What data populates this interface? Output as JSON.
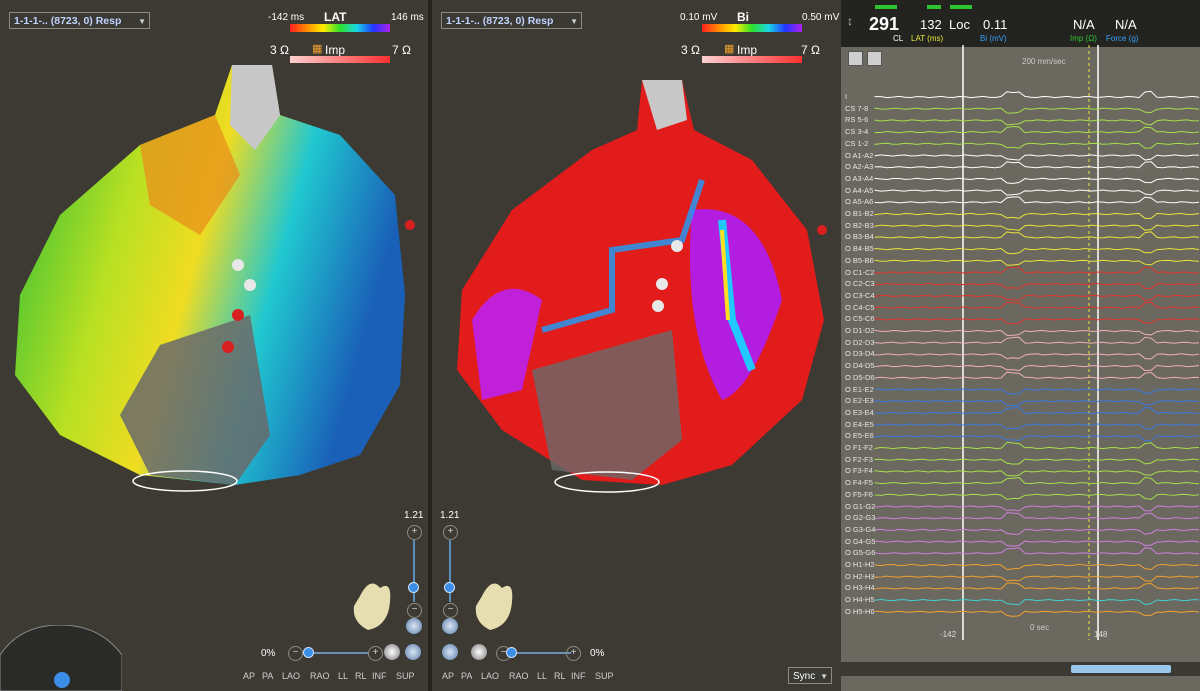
{
  "left_map": {
    "selector": "1-1-1-.. (8723, 0) Resp",
    "legend_title": "LAT",
    "legend_min": "-142 ms",
    "legend_max": "146 ms",
    "imp_label": "Imp",
    "imp_min": "3 Ω",
    "imp_max": "7 Ω",
    "zoom": "1.21",
    "tilt": "0%",
    "views": [
      "AP",
      "PA",
      "LAO",
      "RAO",
      "LL",
      "RL",
      "INF",
      "SUP"
    ]
  },
  "right_map": {
    "selector": "1-1-1-.. (8723, 0) Resp",
    "legend_title": "Bi",
    "legend_min": "0.10 mV",
    "legend_max": "0.50 mV",
    "imp_label": "Imp",
    "imp_min": "3 Ω",
    "imp_max": "7 Ω",
    "zoom": "1.21",
    "tilt": "0%",
    "views": [
      "AP",
      "PA",
      "LAO",
      "RAO",
      "LL",
      "RL",
      "INF",
      "SUP"
    ],
    "sync_label": "Sync"
  },
  "ecg": {
    "cl_value": "291",
    "cl_label": "CL",
    "lat_value": "132",
    "lat_label": "LAT (ms)",
    "loc_label": "Loc",
    "bi_value": "0.11",
    "bi_label": "Bi (mV)",
    "imp_value": "N/A",
    "imp_label": "Imp (Ω)",
    "force_value": "N/A",
    "force_label": "Force (g)",
    "sweep_speed": "200 mm/sec",
    "time_left": "-142",
    "time_zero": "0 sec",
    "time_right": "148",
    "channels": [
      {
        "label": "I",
        "color": "#ffffff"
      },
      {
        "label": "CS 7-8",
        "color": "#a6e04a"
      },
      {
        "label": "RS 5-6",
        "color": "#a6e04a"
      },
      {
        "label": "CS 3-4",
        "color": "#a6e04a"
      },
      {
        "label": "CS 1-2",
        "color": "#a6e04a"
      },
      {
        "label": "O A1-A2",
        "color": "#ffffff"
      },
      {
        "label": "O A2-A3",
        "color": "#ffffff"
      },
      {
        "label": "O A3-A4",
        "color": "#ffffff"
      },
      {
        "label": "O A4-A5",
        "color": "#ffffff"
      },
      {
        "label": "O A5-A6",
        "color": "#ffffff"
      },
      {
        "label": "O B1-B2",
        "color": "#e8e63a"
      },
      {
        "label": "O B2-B3",
        "color": "#e8e63a"
      },
      {
        "label": "O B3-B4",
        "color": "#e8e63a"
      },
      {
        "label": "O B4-B5",
        "color": "#e8e63a"
      },
      {
        "label": "O B5-B6",
        "color": "#e8e63a"
      },
      {
        "label": "O C1-C2",
        "color": "#e0322a"
      },
      {
        "label": "O C2-C3",
        "color": "#e0322a"
      },
      {
        "label": "O C3-C4",
        "color": "#e0322a"
      },
      {
        "label": "O C4-C5",
        "color": "#e0322a"
      },
      {
        "label": "O C5-C6",
        "color": "#e0322a"
      },
      {
        "label": "O D1-D2",
        "color": "#f0b0b8"
      },
      {
        "label": "O D2-D3",
        "color": "#f0b0b8"
      },
      {
        "label": "O D3-D4",
        "color": "#f0b0b8"
      },
      {
        "label": "O D4-D5",
        "color": "#f0b0b8"
      },
      {
        "label": "O D5-D6",
        "color": "#f0b0b8"
      },
      {
        "label": "O E1-E2",
        "color": "#3a78e0"
      },
      {
        "label": "O E2-E3",
        "color": "#3a78e0"
      },
      {
        "label": "O E3-E4",
        "color": "#3a78e0"
      },
      {
        "label": "O E4-E5",
        "color": "#3a78e0"
      },
      {
        "label": "O E5-E6",
        "color": "#3a78e0"
      },
      {
        "label": "O F1-F2",
        "color": "#a6e04a"
      },
      {
        "label": "O F2-F3",
        "color": "#a6e04a"
      },
      {
        "label": "O F3-F4",
        "color": "#a6e04a"
      },
      {
        "label": "O F4-F5",
        "color": "#a6e04a"
      },
      {
        "label": "O F5-F6",
        "color": "#a6e04a"
      },
      {
        "label": "O G1-G2",
        "color": "#d080e0"
      },
      {
        "label": "O G2-G3",
        "color": "#d080e0"
      },
      {
        "label": "O G3-G4",
        "color": "#d080e0"
      },
      {
        "label": "O G4-G5",
        "color": "#d080e0"
      },
      {
        "label": "O G5-G6",
        "color": "#d080e0"
      },
      {
        "label": "O H1-H2",
        "color": "#f0a030"
      },
      {
        "label": "O H2-H3",
        "color": "#f0a030"
      },
      {
        "label": "O H3-H4",
        "color": "#f0a030"
      },
      {
        "label": "O H4-H5",
        "color": "#40d0d0"
      },
      {
        "label": "O H5-H6",
        "color": "#f0a030"
      }
    ]
  }
}
